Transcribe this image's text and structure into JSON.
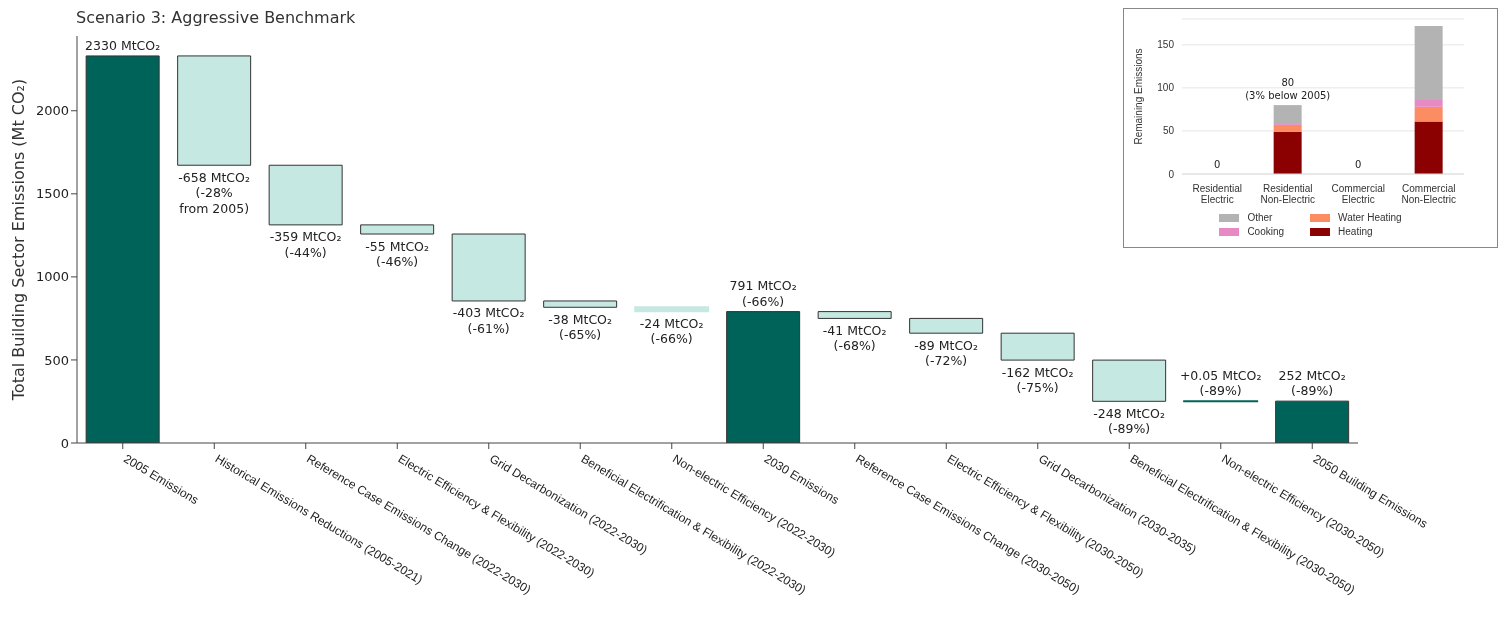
{
  "chart_data": [
    {
      "type": "bar",
      "title": "Scenario 3: Aggressive Benchmark",
      "ylabel": "Total Building Sector Emissions (Mt CO₂)",
      "categories": [
        "2005 Emissions",
        "Historical Emissions Reductions (2005-2021)",
        "Reference Case Emissions Change (2022-2030)",
        "Electric Efficiency & Flexibility (2022-2030)",
        "Grid Decarbonization (2022-2030)",
        "Beneficial Electrification & Flexibility (2022-2030)",
        "Non-electric Efficiency (2022-2030)",
        "2030 Emissions",
        "Reference Case Emissions Change (2030-2050)",
        "Electric Efficiency & Flexibility (2030-2050)",
        "Grid Decarbonization (2030-2035)",
        "Beneficial Electrification & Flexibility (2030-2050)",
        "Non-electric Efficiency (2030-2050)",
        "2050 Building Emissions"
      ],
      "values": [
        2330,
        -658,
        -359,
        -55,
        -403,
        -38,
        -24,
        791,
        -41,
        -89,
        -162,
        -248,
        0.05,
        252
      ],
      "base": [
        0,
        2330,
        1672,
        1313,
        1258,
        855,
        817,
        0,
        791,
        750,
        661,
        499,
        251,
        0
      ],
      "colors": [
        "#00635a",
        "#c5e9e2",
        "#c5e9e2",
        "#c5e9e2",
        "#c5e9e2",
        "#c5e9e2",
        "#c5e9e2",
        "#00635a",
        "#c5e9e2",
        "#c5e9e2",
        "#c5e9e2",
        "#c5e9e2",
        "#00635a",
        "#00635a"
      ],
      "value_labels": [
        "2330 MtCO₂",
        "-658 MtCO₂\n(-28%\nfrom 2005)",
        "-359 MtCO₂\n(-44%)",
        "-55 MtCO₂\n(-46%)",
        "-403 MtCO₂\n(-61%)",
        "-38 MtCO₂\n(-65%)",
        "-24 MtCO₂\n(-66%)",
        "791 MtCO₂\n(-66%)",
        "-41 MtCO₂\n(-68%)",
        "-89 MtCO₂\n(-72%)",
        "-162 MtCO₂\n(-75%)",
        "-248 MtCO₂\n(-89%)",
        "+0.05 MtCO₂\n(-89%)",
        "252 MtCO₂\n(-89%)"
      ],
      "ylim": [
        0,
        2450
      ],
      "yticks": [
        0,
        500,
        1000,
        1500,
        2000
      ],
      "grid": false
    },
    {
      "type": "bar",
      "stacked": true,
      "ylabel": "Remaining Emissions",
      "categories": [
        "Residential Electric",
        "Residential Non-Electric",
        "Commercial Electric",
        "Commercial Non-Electric"
      ],
      "series": [
        {
          "name": "Heating",
          "color": "#8b0000",
          "values": [
            0,
            49,
            0,
            61
          ]
        },
        {
          "name": "Water Heating",
          "color": "#fc8d62",
          "values": [
            0,
            8,
            0,
            17
          ]
        },
        {
          "name": "Cooking",
          "color": "#e78ac3",
          "values": [
            0,
            1,
            0,
            8
          ]
        },
        {
          "name": "Other",
          "color": "#b3b3b3",
          "values": [
            0,
            22,
            0,
            86
          ]
        }
      ],
      "totals": [
        "0",
        "80\n(3% below 2005)",
        "0",
        null
      ],
      "ylim": [
        0,
        180
      ],
      "yticks": [
        0,
        50,
        100,
        150
      ],
      "grid": "y",
      "legend": "bottom"
    }
  ]
}
